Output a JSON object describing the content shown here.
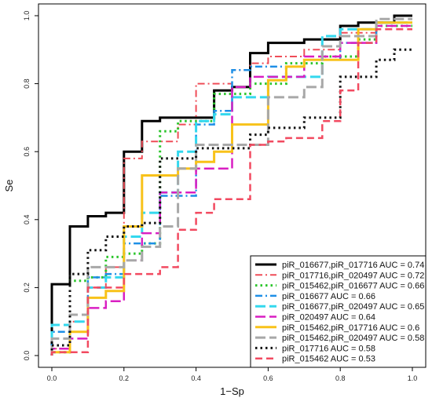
{
  "chart_data": {
    "type": "line",
    "title": "",
    "xlabel": "1−Sp",
    "ylabel": "Se",
    "xlim": [
      0,
      1
    ],
    "ylim": [
      0,
      1
    ],
    "xticks": [
      "0.0",
      "0.2",
      "0.4",
      "0.6",
      "0.8",
      "1.0"
    ],
    "yticks": [
      "0.0",
      "0.2",
      "0.4",
      "0.6",
      "0.8",
      "1.0"
    ],
    "legend_position": "bottom-right",
    "grid": false,
    "series": [
      {
        "name": "piR_016677,piR_017716 AUC = 0.74",
        "color": "#000000",
        "dash": "solid",
        "width": 3,
        "x": [
          0,
          0,
          0.05,
          0.05,
          0.1,
          0.1,
          0.15,
          0.15,
          0.2,
          0.2,
          0.25,
          0.25,
          0.3,
          0.3,
          0.45,
          0.45,
          0.5,
          0.5,
          0.55,
          0.55,
          0.6,
          0.6,
          0.7,
          0.7,
          0.8,
          0.8,
          0.85,
          0.85,
          0.95,
          0.95,
          1.0
        ],
        "y": [
          0,
          0.21,
          0.21,
          0.38,
          0.38,
          0.41,
          0.41,
          0.42,
          0.42,
          0.6,
          0.6,
          0.69,
          0.69,
          0.7,
          0.7,
          0.78,
          0.78,
          0.79,
          0.79,
          0.89,
          0.89,
          0.92,
          0.92,
          0.93,
          0.93,
          0.97,
          0.97,
          0.98,
          0.98,
          1.0,
          1.0
        ]
      },
      {
        "name": "piR_017716,piR_020497 AUC = 0.72",
        "color": "#ef4d58",
        "dash": "dashdot",
        "width": 2,
        "x": [
          0,
          0,
          0.05,
          0.05,
          0.1,
          0.1,
          0.15,
          0.15,
          0.2,
          0.2,
          0.25,
          0.25,
          0.35,
          0.35,
          0.4,
          0.4,
          0.5,
          0.5,
          0.55,
          0.55,
          0.6,
          0.6,
          0.7,
          0.7,
          0.8,
          0.8,
          0.9,
          0.9,
          1.0
        ],
        "y": [
          0,
          0.02,
          0.02,
          0.1,
          0.1,
          0.2,
          0.2,
          0.26,
          0.26,
          0.58,
          0.58,
          0.63,
          0.63,
          0.68,
          0.68,
          0.8,
          0.8,
          0.84,
          0.84,
          0.86,
          0.86,
          0.88,
          0.88,
          0.9,
          0.9,
          0.95,
          0.95,
          0.98,
          0.98
        ]
      },
      {
        "name": "piR_015462,piR_016677 AUC = 0.66",
        "color": "#2cc52c",
        "dash": "dotted",
        "width": 3,
        "x": [
          0,
          0,
          0.05,
          0.05,
          0.1,
          0.1,
          0.15,
          0.15,
          0.2,
          0.2,
          0.25,
          0.25,
          0.3,
          0.3,
          0.35,
          0.35,
          0.45,
          0.45,
          0.55,
          0.55,
          0.65,
          0.65,
          0.75,
          0.75,
          0.85,
          0.85,
          0.9,
          0.9,
          1.0
        ],
        "y": [
          0,
          0.01,
          0.01,
          0.22,
          0.22,
          0.23,
          0.23,
          0.29,
          0.29,
          0.3,
          0.3,
          0.33,
          0.33,
          0.66,
          0.66,
          0.69,
          0.69,
          0.77,
          0.77,
          0.8,
          0.8,
          0.86,
          0.86,
          0.88,
          0.88,
          0.93,
          0.93,
          0.97,
          0.97
        ]
      },
      {
        "name": "piR_016677 AUC = 0.66",
        "color": "#1e8fe6",
        "dash": "dashdot",
        "width": 2.5,
        "x": [
          0,
          0,
          0.1,
          0.1,
          0.15,
          0.15,
          0.2,
          0.2,
          0.3,
          0.3,
          0.4,
          0.4,
          0.45,
          0.45,
          0.5,
          0.5,
          0.55,
          0.55,
          0.7,
          0.7,
          0.8,
          0.8,
          0.9,
          0.9,
          1.0
        ],
        "y": [
          0,
          0.07,
          0.07,
          0.23,
          0.23,
          0.24,
          0.24,
          0.33,
          0.33,
          0.47,
          0.47,
          0.68,
          0.68,
          0.72,
          0.72,
          0.84,
          0.84,
          0.85,
          0.85,
          0.87,
          0.87,
          0.92,
          0.92,
          0.98,
          0.98
        ]
      },
      {
        "name": "piR_016677,piR_020497 AUC = 0.65",
        "color": "#33d8ee",
        "dash": "longdash",
        "width": 3,
        "x": [
          0,
          0,
          0.05,
          0.05,
          0.1,
          0.1,
          0.15,
          0.15,
          0.2,
          0.2,
          0.25,
          0.25,
          0.3,
          0.3,
          0.35,
          0.35,
          0.4,
          0.4,
          0.45,
          0.45,
          0.5,
          0.5,
          0.6,
          0.6,
          0.75,
          0.75,
          0.8,
          0.8,
          0.9,
          0.9,
          1.0
        ],
        "y": [
          0,
          0.09,
          0.09,
          0.1,
          0.1,
          0.2,
          0.2,
          0.23,
          0.23,
          0.35,
          0.35,
          0.42,
          0.42,
          0.48,
          0.48,
          0.6,
          0.6,
          0.69,
          0.69,
          0.71,
          0.71,
          0.76,
          0.76,
          0.82,
          0.82,
          0.94,
          0.94,
          0.96,
          0.96,
          0.98,
          0.98
        ]
      },
      {
        "name": "piR_020497 AUC = 0.64",
        "color": "#d91fc2",
        "dash": "longdash",
        "width": 2.5,
        "x": [
          0,
          0,
          0.05,
          0.05,
          0.1,
          0.1,
          0.15,
          0.15,
          0.2,
          0.2,
          0.25,
          0.25,
          0.3,
          0.3,
          0.4,
          0.4,
          0.5,
          0.5,
          0.55,
          0.55,
          0.7,
          0.7,
          0.8,
          0.8,
          0.9,
          0.9,
          1.0
        ],
        "y": [
          0,
          0.02,
          0.02,
          0.05,
          0.05,
          0.14,
          0.14,
          0.16,
          0.16,
          0.28,
          0.28,
          0.36,
          0.36,
          0.48,
          0.48,
          0.55,
          0.55,
          0.79,
          0.79,
          0.82,
          0.82,
          0.88,
          0.88,
          0.92,
          0.92,
          0.97,
          0.97
        ]
      },
      {
        "name": "piR_015462,piR_017716 AUC = 0.6",
        "color": "#f8c21a",
        "dash": "solid",
        "width": 3,
        "x": [
          0,
          0,
          0.05,
          0.05,
          0.1,
          0.1,
          0.15,
          0.15,
          0.2,
          0.2,
          0.25,
          0.25,
          0.35,
          0.35,
          0.4,
          0.4,
          0.45,
          0.45,
          0.5,
          0.5,
          0.55,
          0.55,
          0.6,
          0.6,
          0.65,
          0.65,
          0.7,
          0.7,
          0.85,
          0.85,
          0.9,
          0.9,
          1.0
        ],
        "y": [
          0,
          0.01,
          0.01,
          0.07,
          0.07,
          0.17,
          0.17,
          0.19,
          0.19,
          0.38,
          0.38,
          0.53,
          0.53,
          0.55,
          0.55,
          0.57,
          0.57,
          0.6,
          0.6,
          0.68,
          0.68,
          0.68,
          0.68,
          0.81,
          0.81,
          0.85,
          0.85,
          0.87,
          0.87,
          0.96,
          0.96,
          0.98,
          0.98
        ]
      },
      {
        "name": "piR_015462,piR_020497 AUC = 0.58",
        "color": "#a8a8a8",
        "dash": "longdash",
        "width": 3,
        "x": [
          0,
          0,
          0.05,
          0.05,
          0.1,
          0.1,
          0.2,
          0.2,
          0.25,
          0.25,
          0.3,
          0.3,
          0.35,
          0.35,
          0.4,
          0.4,
          0.45,
          0.45,
          0.6,
          0.6,
          0.7,
          0.7,
          0.75,
          0.75,
          0.8,
          0.8,
          0.9,
          0.9,
          1.0
        ],
        "y": [
          0,
          0.05,
          0.05,
          0.12,
          0.12,
          0.26,
          0.26,
          0.28,
          0.28,
          0.32,
          0.32,
          0.38,
          0.38,
          0.55,
          0.55,
          0.62,
          0.62,
          0.62,
          0.62,
          0.76,
          0.76,
          0.79,
          0.79,
          0.91,
          0.91,
          0.94,
          0.94,
          0.99,
          0.99
        ]
      },
      {
        "name": "piR_017716 AUC = 0.58",
        "color": "#111111",
        "dash": "dotted",
        "width": 3,
        "x": [
          0,
          0,
          0.05,
          0.05,
          0.1,
          0.1,
          0.15,
          0.15,
          0.2,
          0.2,
          0.25,
          0.25,
          0.3,
          0.3,
          0.4,
          0.4,
          0.55,
          0.55,
          0.6,
          0.6,
          0.7,
          0.7,
          0.8,
          0.8,
          0.9,
          0.9,
          0.95,
          0.95,
          1.0
        ],
        "y": [
          0,
          0.03,
          0.03,
          0.24,
          0.24,
          0.31,
          0.31,
          0.35,
          0.35,
          0.38,
          0.38,
          0.39,
          0.39,
          0.58,
          0.58,
          0.61,
          0.61,
          0.65,
          0.65,
          0.67,
          0.67,
          0.7,
          0.7,
          0.82,
          0.82,
          0.87,
          0.87,
          0.9,
          0.9
        ]
      },
      {
        "name": "piR_015462 AUC = 0.53",
        "color": "#f24a60",
        "dash": "dashed",
        "width": 2.5,
        "x": [
          0,
          0,
          0.1,
          0.1,
          0.2,
          0.2,
          0.3,
          0.3,
          0.35,
          0.35,
          0.4,
          0.4,
          0.45,
          0.45,
          0.55,
          0.55,
          0.6,
          0.6,
          0.65,
          0.65,
          0.75,
          0.75,
          0.8,
          0.8,
          0.85,
          0.85,
          0.9,
          0.9,
          1.0
        ],
        "y": [
          0,
          0.01,
          0.01,
          0.2,
          0.2,
          0.24,
          0.24,
          0.26,
          0.26,
          0.37,
          0.37,
          0.42,
          0.42,
          0.46,
          0.46,
          0.62,
          0.62,
          0.63,
          0.63,
          0.64,
          0.64,
          0.69,
          0.69,
          0.78,
          0.78,
          0.92,
          0.92,
          0.96,
          0.96
        ]
      }
    ]
  }
}
